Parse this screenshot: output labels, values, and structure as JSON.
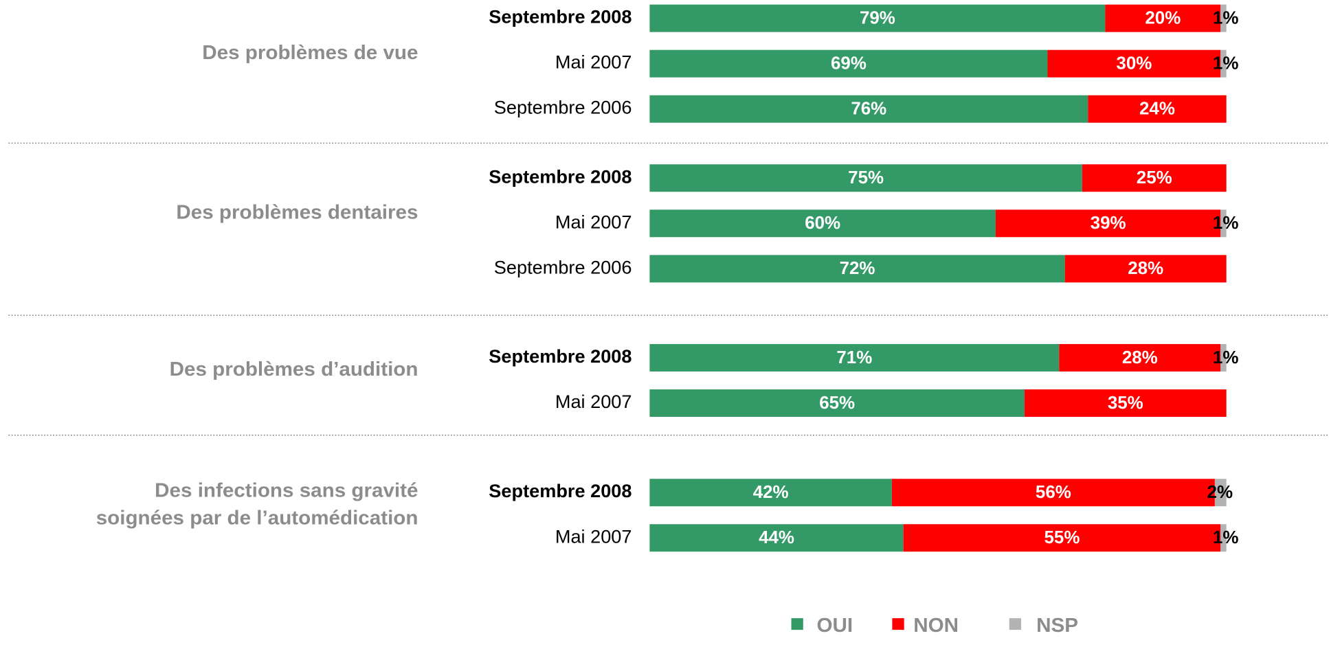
{
  "chart_data": {
    "type": "stacked_bar_h",
    "series": [
      {
        "name": "OUI",
        "color": "#339966"
      },
      {
        "name": "NON",
        "color": "#ff0000"
      },
      {
        "name": "NSP",
        "color": "#b3b3b3"
      }
    ],
    "groups": [
      {
        "name": [
          "Des problèmes de vue"
        ],
        "categories": [
          "Septembre 2008",
          "Mai 2007",
          "Septembre 2006"
        ],
        "values": [
          [
            79,
            69,
            76
          ],
          [
            20,
            30,
            24
          ],
          [
            1,
            1,
            null
          ]
        ],
        "value_labels": [
          [
            "79%",
            "69%",
            "76%"
          ],
          [
            "20%",
            "30%",
            "24%"
          ],
          [
            "1%",
            "1%",
            null
          ]
        ]
      },
      {
        "name": [
          "Des problèmes dentaires"
        ],
        "categories": [
          "Septembre 2008",
          "Mai 2007",
          "Septembre 2006"
        ],
        "values": [
          [
            75,
            60,
            72
          ],
          [
            25,
            39,
            28
          ],
          [
            null,
            1,
            null
          ]
        ],
        "value_labels": [
          [
            "75%",
            "60%",
            "72%"
          ],
          [
            "25%",
            "39%",
            "28%"
          ],
          [
            null,
            "1%",
            null
          ]
        ]
      },
      {
        "name": [
          "Des problèmes d’audition"
        ],
        "categories": [
          "Septembre 2008",
          "Mai 2007"
        ],
        "values": [
          [
            71,
            65
          ],
          [
            28,
            35
          ],
          [
            1,
            null
          ]
        ],
        "value_labels": [
          [
            "71%",
            "65%"
          ],
          [
            "28%",
            "35%"
          ],
          [
            "1%",
            null
          ]
        ]
      },
      {
        "name": [
          "Des infections sans gravité",
          "soignées par de l’automédication"
        ],
        "categories": [
          "Septembre 2008",
          "Mai 2007"
        ],
        "values": [
          [
            42,
            44
          ],
          [
            56,
            55
          ],
          [
            2,
            1
          ]
        ],
        "value_labels": [
          [
            "42%",
            "44%"
          ],
          [
            "56%",
            "55%"
          ],
          [
            "2%",
            "1%"
          ]
        ]
      }
    ]
  }
}
